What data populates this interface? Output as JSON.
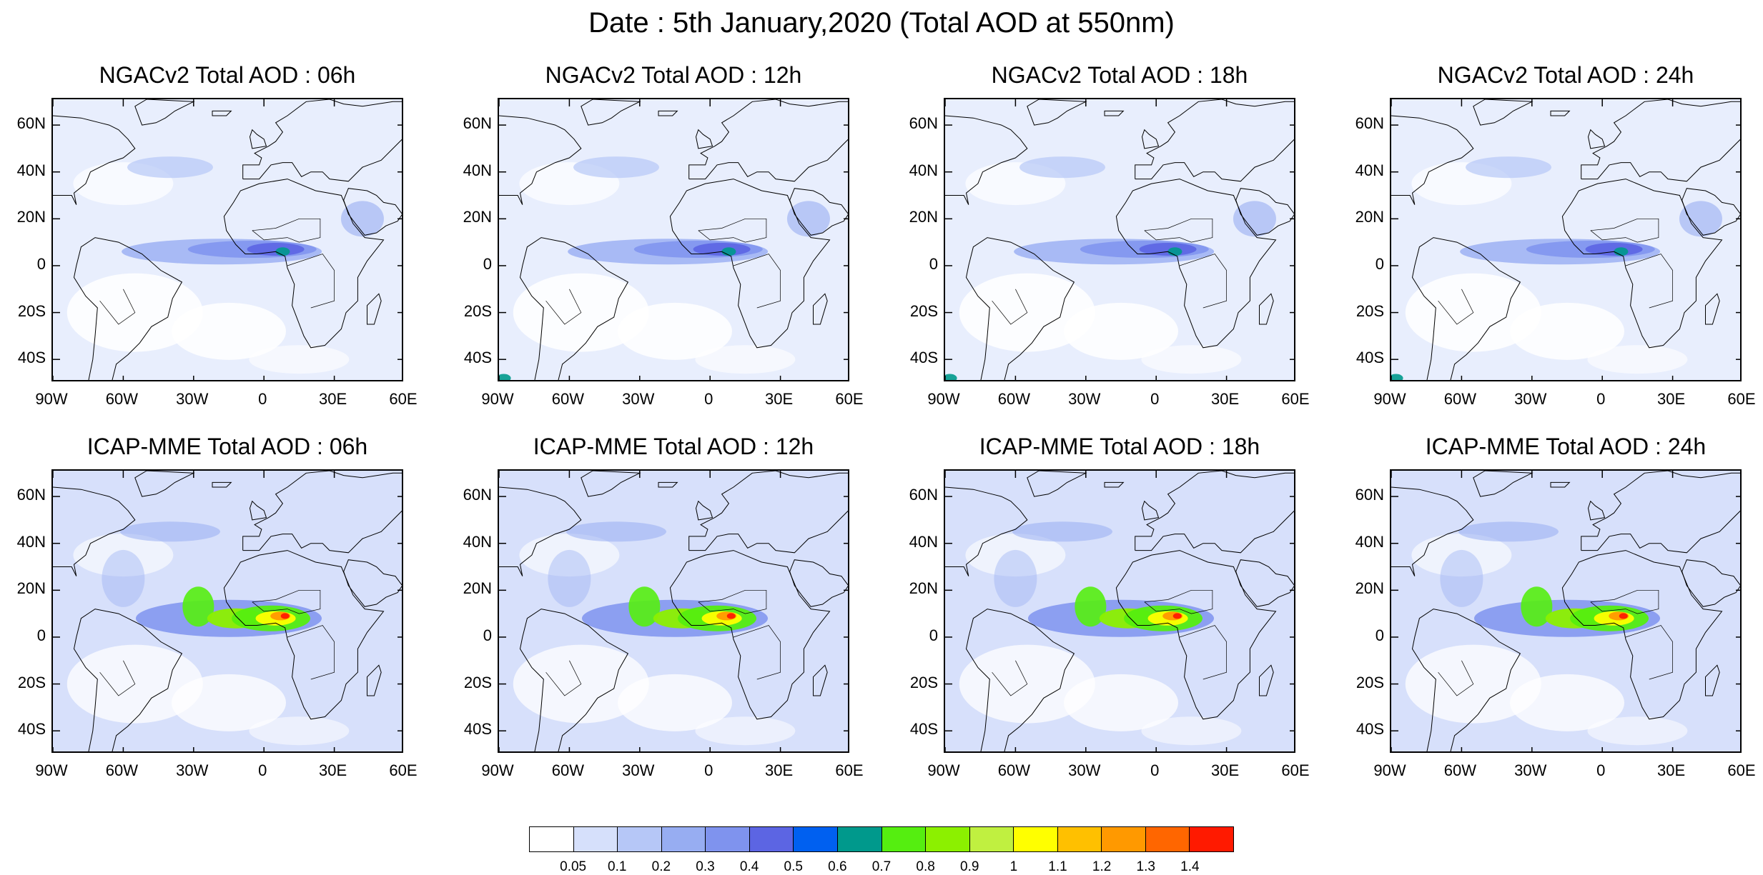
{
  "title": "Date : 5th January,2020 (Total AOD at 550nm)",
  "lat_labels": [
    "60N",
    "40N",
    "20N",
    "0",
    "20S",
    "40S"
  ],
  "lon_labels": [
    "90W",
    "60W",
    "30W",
    "0",
    "30E",
    "60E"
  ],
  "panels": [
    {
      "title": "NGACv2 Total AOD : 06h",
      "model": "ngac",
      "hour": 6
    },
    {
      "title": "NGACv2 Total AOD : 12h",
      "model": "ngac",
      "hour": 12
    },
    {
      "title": "NGACv2 Total AOD : 18h",
      "model": "ngac",
      "hour": 18
    },
    {
      "title": "NGACv2 Total AOD : 24h",
      "model": "ngac",
      "hour": 24
    },
    {
      "title": "ICAP-MME Total AOD : 06h",
      "model": "icap",
      "hour": 6
    },
    {
      "title": "ICAP-MME Total AOD : 12h",
      "model": "icap",
      "hour": 12
    },
    {
      "title": "ICAP-MME Total AOD : 18h",
      "model": "icap",
      "hour": 18
    },
    {
      "title": "ICAP-MME Total AOD : 24h",
      "model": "icap",
      "hour": 24
    }
  ],
  "colorbar": {
    "labels": [
      "0.05",
      "0.1",
      "0.2",
      "0.3",
      "0.4",
      "0.5",
      "0.6",
      "0.7",
      "0.8",
      "0.9",
      "1",
      "1.1",
      "1.2",
      "1.3",
      "1.4"
    ],
    "colors": [
      "#ffffff",
      "#d6e0fb",
      "#b6c7f7",
      "#97adf2",
      "#7f93ee",
      "#5c65e3",
      "#0060f0",
      "#00998c",
      "#55ee10",
      "#8cf000",
      "#c0f040",
      "#ffff00",
      "#ffc000",
      "#ff9900",
      "#ff6600",
      "#ff1a00"
    ]
  }
}
